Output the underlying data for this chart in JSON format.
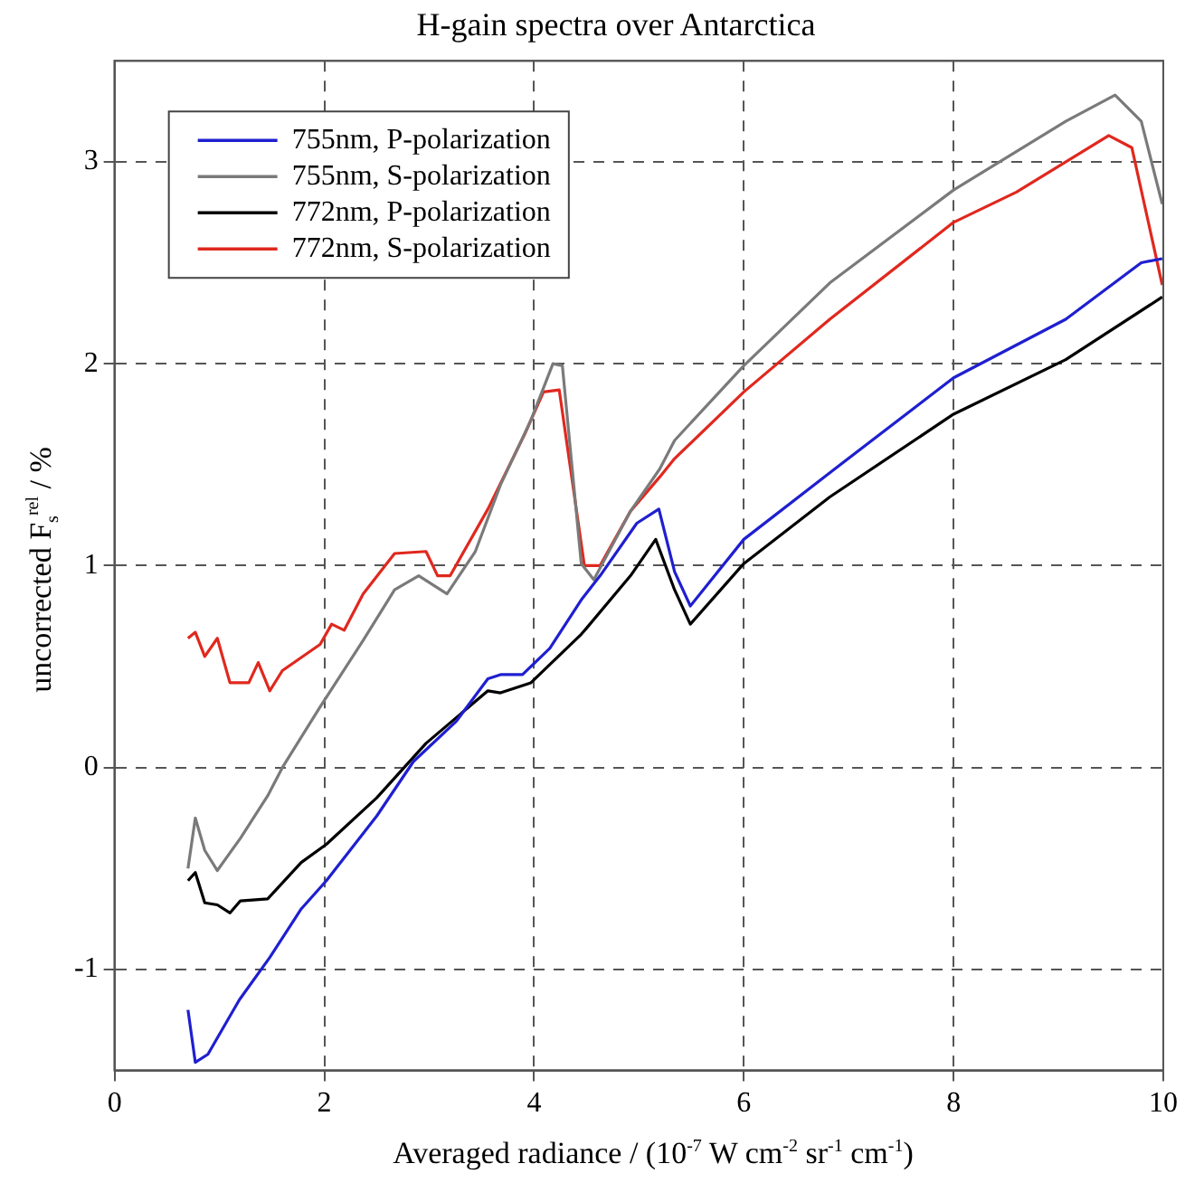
{
  "chart_data": {
    "type": "line",
    "title": "H-gain spectra over Antarctica",
    "xlabel": "Averaged radiance / (10$^{-7}$ W cm$^{-2}$ sr$^{-1}$ cm$^{-1}$)",
    "ylabel": "uncorrected F$_{s}$$^{rel}$ / %",
    "xlim": [
      0,
      10
    ],
    "ylim": [
      -1.5,
      3.5
    ],
    "xticks": [
      0,
      2,
      4,
      6,
      8,
      10
    ],
    "yticks": [
      -1,
      0,
      1,
      2,
      3
    ],
    "grid": true,
    "legend": "top left",
    "marker": "none",
    "line_style": "solid",
    "series": [
      {
        "name": "755nm, P-polarization",
        "color": "#1f1fd0",
        "x": [
          0.7,
          0.77,
          0.89,
          1.19,
          1.48,
          1.78,
          2.02,
          2.5,
          2.85,
          3.26,
          3.56,
          3.68,
          3.89,
          4.15,
          4.45,
          4.63,
          4.98,
          5.19,
          5.34,
          5.49,
          6.0,
          6.82,
          8.0,
          9.07,
          9.79,
          9.99
        ],
        "values": [
          -1.2,
          -1.46,
          -1.42,
          -1.15,
          -0.94,
          -0.7,
          -0.56,
          -0.24,
          0.03,
          0.23,
          0.44,
          0.46,
          0.46,
          0.59,
          0.83,
          0.95,
          1.21,
          1.28,
          0.97,
          0.8,
          1.13,
          1.46,
          1.93,
          2.22,
          2.5,
          2.52
        ]
      },
      {
        "name": "755nm, S-polarization",
        "color": "#7a7a7a",
        "x": [
          0.7,
          0.77,
          0.86,
          0.98,
          1.2,
          1.46,
          1.6,
          1.96,
          2.37,
          2.67,
          2.9,
          3.17,
          3.44,
          3.68,
          3.97,
          4.18,
          4.27,
          4.45,
          4.57,
          4.92,
          5.2,
          5.34,
          6.0,
          6.82,
          8.0,
          9.07,
          9.54,
          9.79,
          9.99
        ],
        "values": [
          -0.5,
          -0.25,
          -0.41,
          -0.51,
          -0.35,
          -0.14,
          0,
          0.3,
          0.63,
          0.88,
          0.95,
          0.86,
          1.07,
          1.4,
          1.72,
          2.0,
          1.99,
          1.01,
          0.93,
          1.27,
          1.48,
          1.62,
          1.99,
          2.4,
          2.86,
          3.2,
          3.33,
          3.2,
          2.79
        ]
      },
      {
        "name": "772nm, P-polarization",
        "color": "#000000",
        "x": [
          0.7,
          0.77,
          0.86,
          0.98,
          1.1,
          1.2,
          1.46,
          1.78,
          2.02,
          2.5,
          2.97,
          3.56,
          3.68,
          3.97,
          4.45,
          4.5,
          4.92,
          5.16,
          5.34,
          5.49,
          6.0,
          6.82,
          8.0,
          9.07,
          9.99
        ],
        "values": [
          -0.56,
          -0.52,
          -0.67,
          -0.68,
          -0.72,
          -0.66,
          -0.65,
          -0.47,
          -0.38,
          -0.15,
          0.12,
          0.38,
          0.37,
          0.42,
          0.66,
          0.69,
          0.95,
          1.13,
          0.88,
          0.71,
          1.01,
          1.34,
          1.75,
          2.02,
          2.33
        ]
      },
      {
        "name": "772nm, S-polarization",
        "color": "#e0281e",
        "x": [
          0.7,
          0.77,
          0.86,
          0.98,
          1.1,
          1.28,
          1.37,
          1.48,
          1.6,
          1.96,
          2.07,
          2.19,
          2.37,
          2.67,
          2.97,
          3.08,
          3.2,
          3.56,
          3.91,
          4.09,
          4.24,
          4.48,
          4.63,
          4.92,
          5.2,
          5.34,
          6.0,
          6.82,
          8.0,
          8.6,
          9.48,
          9.7,
          9.99
        ],
        "values": [
          0.64,
          0.67,
          0.55,
          0.64,
          0.42,
          0.42,
          0.52,
          0.38,
          0.48,
          0.61,
          0.71,
          0.68,
          0.86,
          1.06,
          1.07,
          0.95,
          0.95,
          1.28,
          1.65,
          1.86,
          1.87,
          1.0,
          1.0,
          1.27,
          1.44,
          1.53,
          1.86,
          2.22,
          2.7,
          2.85,
          3.13,
          3.07,
          2.39
        ]
      }
    ]
  }
}
